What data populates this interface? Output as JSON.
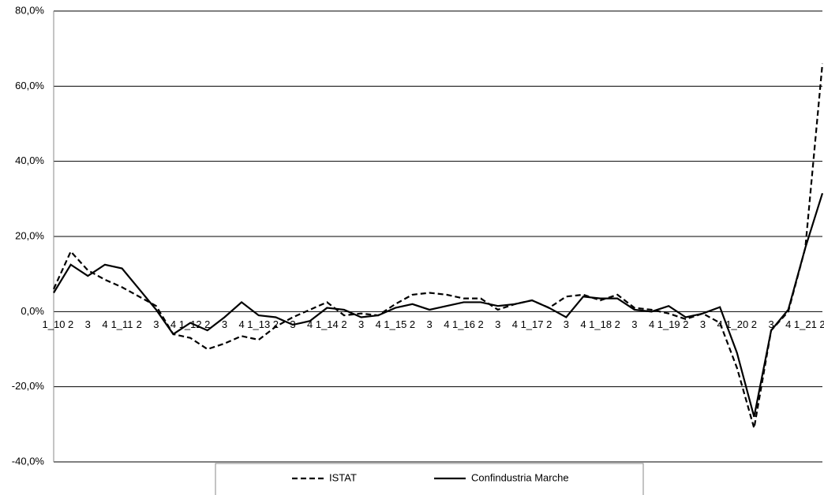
{
  "chart_data": {
    "type": "line",
    "categories": [
      "1_10",
      "2",
      "3",
      "4",
      "1_11",
      "2",
      "3",
      "4",
      "1_12",
      "2",
      "3",
      "4",
      "1_13",
      "2",
      "3",
      "4",
      "1_14",
      "2",
      "3",
      "4",
      "1_15",
      "2",
      "3",
      "4",
      "1_16",
      "2",
      "3",
      "4",
      "1_17",
      "2",
      "3",
      "4",
      "1_18",
      "2",
      "3",
      "4",
      "1_19",
      "2",
      "3",
      "4",
      "1_20",
      "2",
      "3",
      "4",
      "1_21",
      "2"
    ],
    "series": [
      {
        "name": "ISTAT",
        "color": "#000000",
        "line_style": "dashed",
        "values": [
          6,
          16,
          11,
          8.5,
          6.5,
          4,
          1.5,
          -6,
          -7,
          -10,
          -8.5,
          -6.5,
          -7.5,
          -4,
          -1.5,
          0.5,
          2.5,
          -1,
          -0.5,
          -1,
          2,
          4.5,
          5,
          4.5,
          3.5,
          3.5,
          0.5,
          2,
          3,
          1,
          4,
          4.5,
          3,
          4.5,
          1,
          0.5,
          -0.5,
          -2,
          -0.5,
          -3,
          -15,
          -31,
          -5,
          0,
          17,
          66
        ]
      },
      {
        "name": "Confindustria Marche",
        "color": "#000000",
        "line_style": "solid",
        "values": [
          5,
          12.5,
          9.5,
          12.5,
          11.5,
          6,
          0.5,
          -6,
          -3,
          -5,
          -1.5,
          2.5,
          -1,
          -1.5,
          -3.5,
          -2.5,
          1,
          0.5,
          -1.5,
          -1,
          1,
          2,
          0.5,
          1.5,
          2.5,
          2.5,
          1.5,
          2,
          3,
          1,
          -1.5,
          4,
          3.5,
          3.5,
          0.5,
          0,
          1.5,
          -1.5,
          -0.5,
          1.2,
          -11,
          -28,
          -5,
          0.5,
          17,
          31.5
        ]
      }
    ],
    "ylim": [
      -40,
      80
    ],
    "yticks": [
      {
        "value": -40,
        "label": "-40,0%"
      },
      {
        "value": -20,
        "label": "-20,0%"
      },
      {
        "value": 0,
        "label": "0,0%"
      },
      {
        "value": 20,
        "label": "20,0%"
      },
      {
        "value": 40,
        "label": "40,0%"
      },
      {
        "value": 60,
        "label": "60,0%"
      },
      {
        "value": 80,
        "label": "80,0%"
      }
    ],
    "grid": true,
    "legend": "bottom"
  }
}
